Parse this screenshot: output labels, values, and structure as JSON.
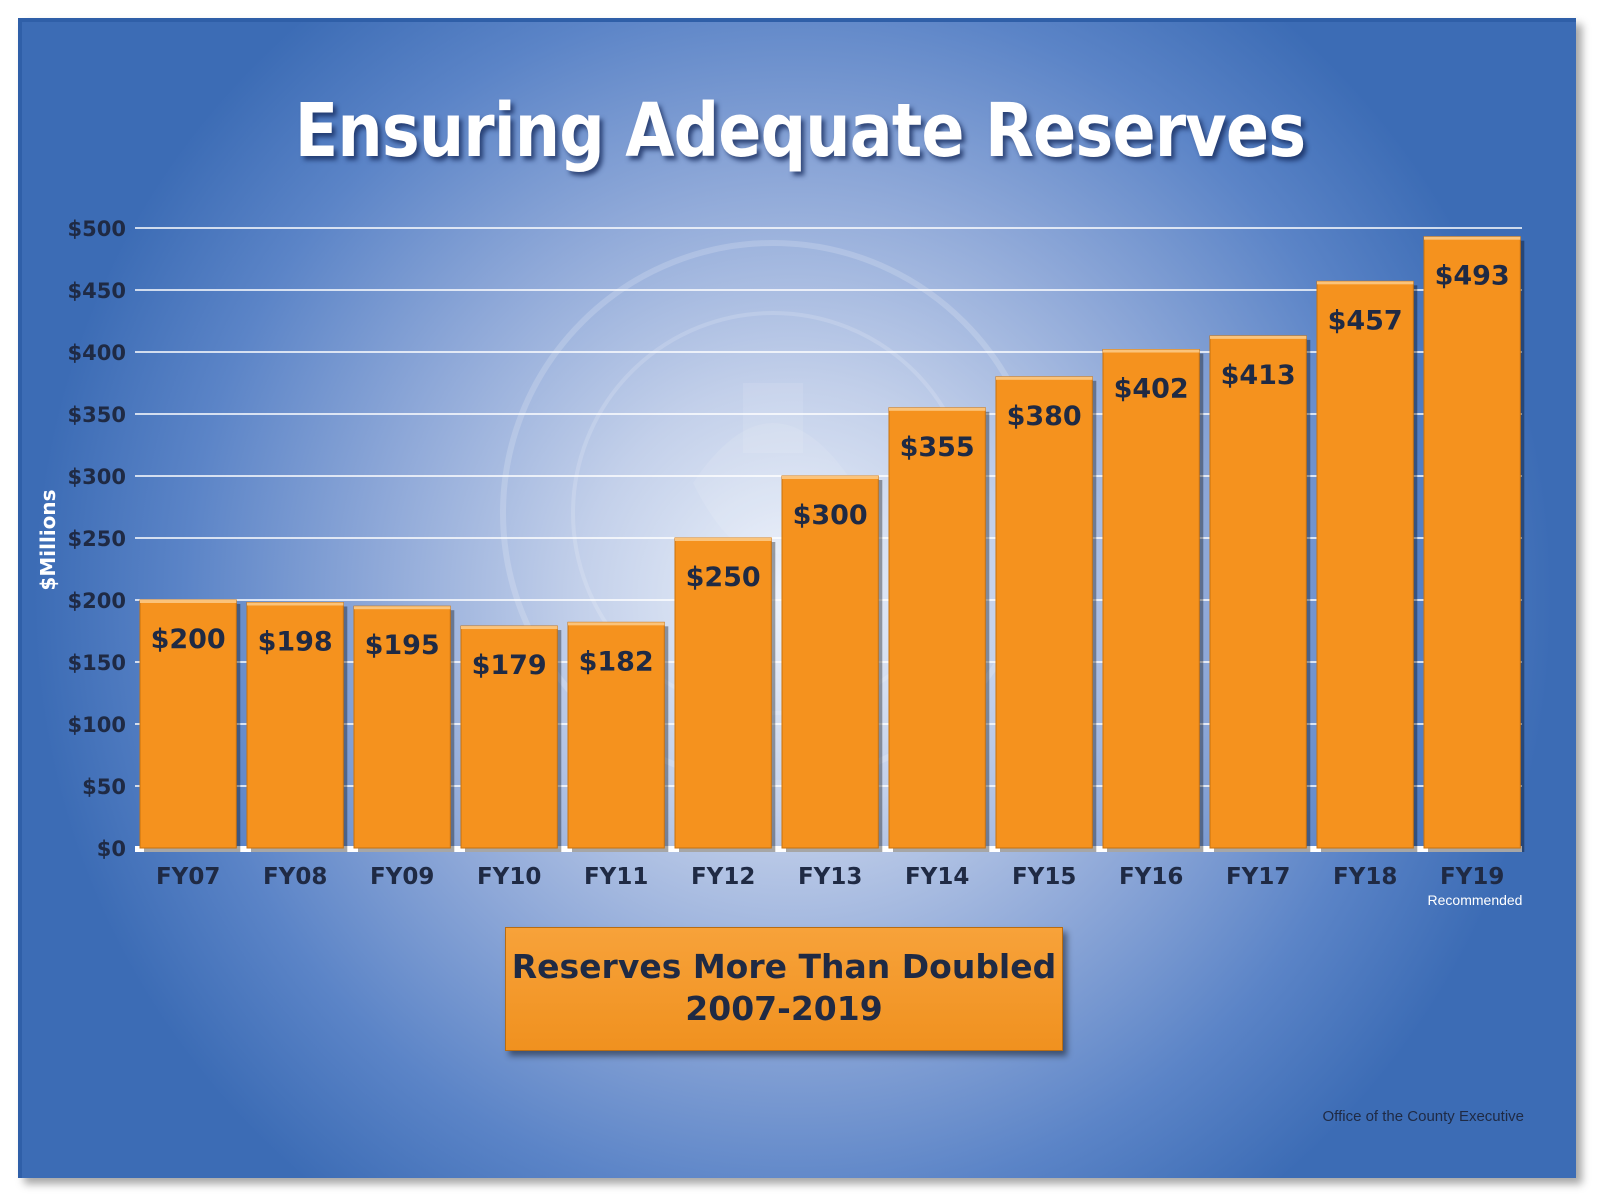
{
  "title": "Ensuring Adequate Reserves",
  "callout": {
    "line1": "Reserves More Than Doubled",
    "line2": "2007-2019"
  },
  "footer": "Office of the County Executive",
  "colors": {
    "bar": "#f5921e",
    "background": "#3c6cb5",
    "text": "#1f2a44"
  },
  "chart_data": {
    "type": "bar",
    "title": "Ensuring Adequate Reserves",
    "ylabel": "$Millions",
    "xlabel": "",
    "ylim": [
      0,
      500
    ],
    "yticks": [
      0,
      50,
      100,
      150,
      200,
      250,
      300,
      350,
      400,
      450,
      500
    ],
    "ytick_labels": [
      "$0",
      "$50",
      "$100",
      "$150",
      "$200",
      "$250",
      "$300",
      "$350",
      "$400",
      "$450",
      "$500"
    ],
    "categories": [
      "FY07",
      "FY08",
      "FY09",
      "FY10",
      "FY11",
      "FY12",
      "FY13",
      "FY14",
      "FY15",
      "FY16",
      "FY17",
      "FY18",
      "FY19"
    ],
    "values": [
      200,
      198,
      195,
      179,
      182,
      250,
      300,
      355,
      380,
      402,
      413,
      457,
      493
    ],
    "data_labels": [
      "$200",
      "$198",
      "$195",
      "$179",
      "$182",
      "$250",
      "$300",
      "$355",
      "$380",
      "$402",
      "$413",
      "$457",
      "$493"
    ],
    "category_notes": {
      "FY19": "Recommended"
    },
    "grid": true
  }
}
